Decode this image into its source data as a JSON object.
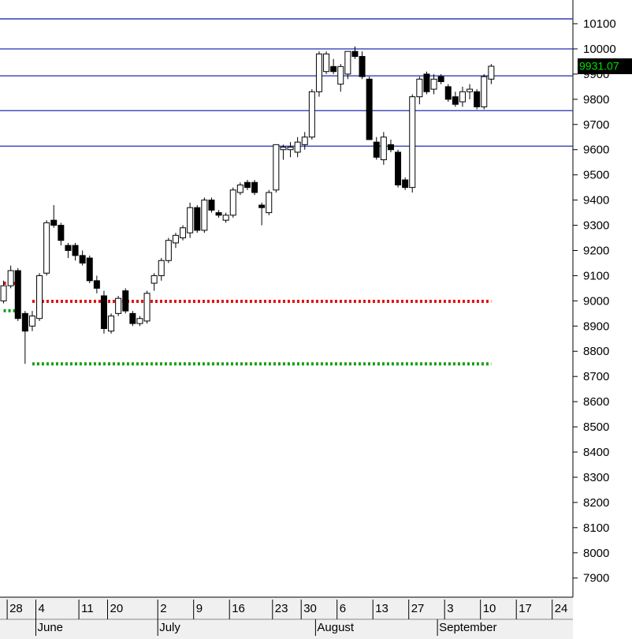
{
  "chart_data": {
    "type": "candlestick",
    "categories": [
      null,
      "28",
      null,
      null,
      null,
      "4",
      null,
      null,
      null,
      null,
      null,
      "11",
      null,
      null,
      null,
      "20",
      null,
      null,
      null,
      null,
      null,
      null,
      "2",
      null,
      null,
      null,
      null,
      "9",
      null,
      null,
      null,
      null,
      "16",
      null,
      null,
      null,
      null,
      null,
      "23",
      null,
      null,
      null,
      "30",
      null,
      null,
      null,
      null,
      "6",
      null,
      null,
      null,
      null,
      "13",
      null,
      null,
      null,
      null,
      "27",
      null,
      null,
      null,
      null,
      "3",
      null,
      null,
      null,
      null,
      "10",
      null,
      null,
      null,
      null,
      "17",
      null,
      null,
      null,
      null,
      "24",
      null,
      null
    ],
    "months": [
      null,
      null,
      null,
      null,
      null,
      "June",
      null,
      null,
      null,
      null,
      null,
      null,
      null,
      null,
      null,
      null,
      null,
      null,
      null,
      null,
      null,
      null,
      "July",
      null,
      null,
      null,
      null,
      null,
      null,
      null,
      null,
      null,
      null,
      null,
      null,
      null,
      null,
      null,
      null,
      null,
      null,
      null,
      null,
      null,
      "August",
      null,
      null,
      null,
      null,
      null,
      null,
      null,
      null,
      null,
      null,
      null,
      null,
      null,
      null,
      null,
      null,
      "September",
      null,
      null,
      null,
      null,
      null,
      null,
      null,
      null,
      null,
      null,
      null,
      null,
      null,
      null,
      null,
      null,
      null,
      null
    ],
    "open": [
      9000,
      9060,
      9120,
      8950,
      8900,
      8930,
      9110,
      9320,
      9300,
      9220,
      9220,
      9180,
      9170,
      9080,
      9020,
      8880,
      8950,
      9040,
      8950,
      8910,
      8920,
      9070,
      9100,
      9160,
      9230,
      9250,
      9270,
      9370,
      9280,
      9400,
      9350,
      9320,
      9340,
      9430,
      9470,
      9470,
      9380,
      9350,
      9440,
      9600,
      9600,
      9590,
      9620,
      9650,
      9830,
      9910,
      9930,
      9860,
      9900,
      9990,
      9970,
      9880,
      9630,
      9560,
      9620,
      9590,
      9480,
      9450,
      9810,
      9900,
      9840,
      9890,
      9850,
      9810,
      9790,
      9830,
      9830,
      9770,
      9880,
      null,
      null,
      null,
      null,
      null,
      null,
      null,
      null,
      null,
      null,
      null
    ],
    "high": [
      9080,
      9140,
      9130,
      8960,
      8960,
      9110,
      9320,
      9380,
      9310,
      9230,
      9230,
      9200,
      9180,
      9100,
      9040,
      8950,
      9020,
      9050,
      8960,
      8940,
      9040,
      9110,
      9170,
      9250,
      9270,
      9300,
      9390,
      9380,
      9410,
      9410,
      9360,
      9350,
      9450,
      9470,
      9480,
      9480,
      9390,
      9440,
      9620,
      9620,
      9630,
      9650,
      9670,
      9840,
      9990,
      9990,
      9960,
      9940,
      9990,
      10010,
      9990,
      9890,
      9650,
      9670,
      9640,
      9600,
      9490,
      9820,
      9890,
      9910,
      9900,
      9900,
      9860,
      9830,
      9850,
      9860,
      9840,
      9900,
      9940,
      null,
      null,
      null,
      null,
      null,
      null,
      null,
      null,
      null,
      null,
      null
    ],
    "low": [
      8990,
      9050,
      8920,
      8750,
      8880,
      8920,
      9100,
      9290,
      9220,
      9170,
      9160,
      9140,
      9070,
      9030,
      8870,
      8870,
      8940,
      8950,
      8900,
      8900,
      8910,
      9040,
      9080,
      9150,
      9210,
      9240,
      9250,
      9270,
      9270,
      9350,
      9330,
      9310,
      9330,
      9420,
      9440,
      9420,
      9300,
      9340,
      9430,
      9560,
      9570,
      9570,
      9600,
      9640,
      9810,
      9900,
      9900,
      9830,
      9880,
      9960,
      9880,
      9640,
      9560,
      9540,
      9590,
      9450,
      9440,
      9430,
      9780,
      9820,
      9820,
      9860,
      9790,
      9770,
      9770,
      9800,
      9760,
      9760,
      9860,
      null,
      null,
      null,
      null,
      null,
      null,
      null,
      null,
      null,
      null,
      null
    ],
    "close": [
      9060,
      9120,
      8930,
      8880,
      8940,
      9100,
      9310,
      9300,
      9240,
      9200,
      9180,
      9150,
      9080,
      9050,
      8890,
      8940,
      9010,
      8960,
      8910,
      8930,
      9030,
      9100,
      9160,
      9240,
      9260,
      9290,
      9370,
      9280,
      9400,
      9360,
      9340,
      9340,
      9440,
      9460,
      9450,
      9430,
      9370,
      9430,
      9620,
      9610,
      9610,
      9630,
      9650,
      9830,
      9980,
      9980,
      9910,
      9930,
      9990,
      9970,
      9890,
      9640,
      9570,
      9650,
      9600,
      9460,
      9450,
      9810,
      9880,
      9830,
      9880,
      9870,
      9800,
      9780,
      9830,
      9840,
      9770,
      9890,
      9931.07,
      null,
      null,
      null,
      null,
      null,
      null,
      null,
      null,
      null,
      null,
      null
    ],
    "up_color": "#ffffff",
    "down_color": "#000000",
    "hlines": [
      10119,
      10000,
      9893,
      9755,
      9614
    ],
    "hline_color": "#1f2fb0",
    "levels": [
      {
        "color": "#e01010",
        "values": [
          9070,
          9070,
          9070,
          null,
          8998,
          8998,
          8998,
          8998,
          8998,
          8998,
          8998,
          8998,
          8998,
          8998,
          8998,
          8998,
          8998,
          8998,
          8998,
          8998,
          8998,
          8998,
          8998,
          8998,
          8998,
          8998,
          8998,
          8998,
          8998,
          8998,
          8998,
          8998,
          8998,
          8998,
          8998,
          8998,
          8998,
          8998,
          8998,
          8998,
          8998,
          8998,
          8998,
          8998,
          8998,
          8998,
          8998,
          8998,
          8998,
          8998,
          8998,
          8998,
          8998,
          8998,
          8998,
          8998,
          8998,
          8998,
          8998,
          8998,
          8998,
          8998,
          8998,
          8998,
          8998,
          8998,
          8998,
          8998,
          8998,
          null,
          null,
          null,
          null,
          null,
          null,
          null,
          null,
          null,
          null,
          null
        ]
      },
      {
        "color": "#10a010",
        "values": [
          8961,
          8961,
          8961,
          null,
          8750,
          8750,
          8750,
          8750,
          8750,
          8750,
          8750,
          8750,
          8750,
          8750,
          8750,
          8750,
          8750,
          8750,
          8750,
          8750,
          8750,
          8750,
          8750,
          8750,
          8750,
          8750,
          8750,
          8750,
          8750,
          8750,
          8750,
          8750,
          8750,
          8750,
          8750,
          8750,
          8750,
          8750,
          8750,
          8750,
          8750,
          8750,
          8750,
          8750,
          8750,
          8750,
          8750,
          8750,
          8750,
          8750,
          8750,
          8750,
          8750,
          8750,
          8750,
          8750,
          8750,
          8750,
          8750,
          8750,
          8750,
          8750,
          8750,
          8750,
          8750,
          8750,
          8750,
          8750,
          8750,
          null,
          null,
          null,
          null,
          null,
          null,
          null,
          null,
          null,
          null,
          null
        ]
      }
    ],
    "ylim": [
      7824,
      10194
    ],
    "yticks": [
      7900,
      8000,
      8100,
      8200,
      8300,
      8400,
      8500,
      8600,
      8700,
      8800,
      8900,
      9000,
      9100,
      9200,
      9300,
      9400,
      9500,
      9600,
      9700,
      9800,
      9900,
      10000,
      10100
    ]
  }
}
